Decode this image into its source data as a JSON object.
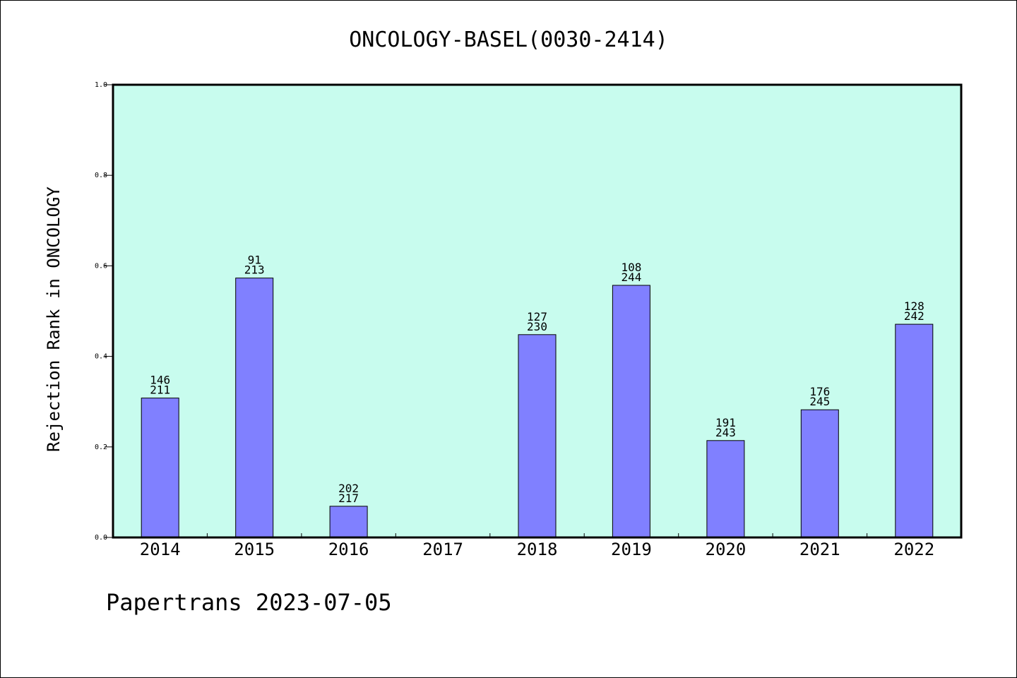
{
  "chart_data": {
    "type": "bar",
    "title": "ONCOLOGY-BASEL(0030-2414)",
    "xlabel": "",
    "ylabel": "Rejection Rank in ONCOLOGY",
    "categories": [
      "2014",
      "2015",
      "2016",
      "2017",
      "2018",
      "2019",
      "2020",
      "2021",
      "2022"
    ],
    "values": [
      0.308,
      0.573,
      0.069,
      0.0,
      0.448,
      0.557,
      0.214,
      0.282,
      0.471
    ],
    "labels_top": [
      "146",
      "91",
      "202",
      "",
      "127",
      "108",
      "191",
      "176",
      "128"
    ],
    "labels_bottom": [
      "211",
      "213",
      "217",
      "",
      "230",
      "244",
      "243",
      "245",
      "242"
    ],
    "ylim": [
      0,
      1.0
    ],
    "yticks": [
      "0.0",
      "0.2",
      "0.4",
      "0.6",
      "0.8",
      "1.0"
    ],
    "grid": false,
    "colors": {
      "plot_background": "#c8fcee",
      "bar_fill": "#8080ff",
      "bar_edge": "#000000"
    }
  },
  "footer": {
    "text": "Papertrans 2023-07-05"
  }
}
